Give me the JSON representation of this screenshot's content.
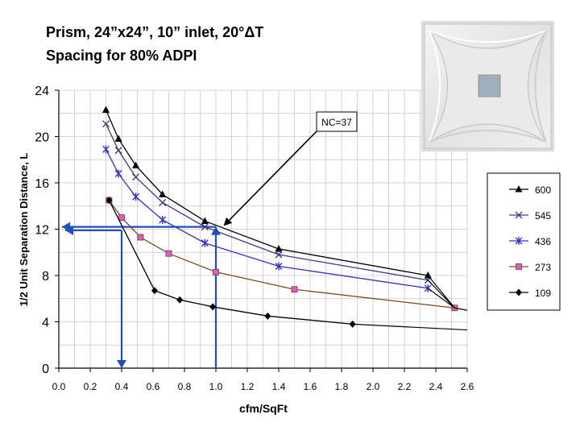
{
  "slide": {
    "title_line1": "Prism, 24”x24”, 10” inlet, 20°ΔT",
    "title_line2": "Spacing for 80% ADPI"
  },
  "colors": {
    "grid": "#c8c8c8",
    "axis": "#000000",
    "arrow_blue": "#1f4fbf",
    "series_600": "#000000",
    "series_545": "#3a3a8a",
    "series_436": "#3333cc",
    "series_273": "#7a4a20",
    "series_109": "#000000",
    "marker_273": "#e060b0"
  },
  "chart_data": {
    "type": "line",
    "title": "",
    "xlabel": "cfm/SqFt",
    "ylabel": "1/2 Unit Separation Distance, L",
    "xlim": [
      0,
      2.6
    ],
    "ylim": [
      0,
      24
    ],
    "x_ticks": [
      "0.0",
      "0.2",
      "0.4",
      "0.6",
      "0.8",
      "1.0",
      "1.2",
      "1.4",
      "1.6",
      "1.8",
      "2.0",
      "2.2",
      "2.4",
      "2.6"
    ],
    "y_ticks": [
      "0",
      "4",
      "8",
      "12",
      "16",
      "20",
      "24"
    ],
    "grid": true,
    "legend_position": "right",
    "annotation": "NC=37",
    "series": [
      {
        "name": "600",
        "marker": "triangle",
        "x": [
          0.3,
          0.38,
          0.49,
          0.66,
          0.93,
          1.4,
          2.35
        ],
        "y": [
          22.3,
          19.8,
          17.5,
          15.0,
          12.7,
          10.3,
          8.0
        ]
      },
      {
        "name": "545",
        "marker": "x",
        "x": [
          0.3,
          0.38,
          0.49,
          0.66,
          0.93,
          1.4,
          2.35
        ],
        "y": [
          21.1,
          18.8,
          16.5,
          14.3,
          12.2,
          9.8,
          7.6
        ]
      },
      {
        "name": "436",
        "marker": "star",
        "x": [
          0.3,
          0.38,
          0.49,
          0.66,
          0.93,
          1.4,
          2.35
        ],
        "y": [
          18.9,
          16.8,
          14.8,
          12.8,
          10.8,
          8.8,
          6.9
        ]
      },
      {
        "name": "273",
        "marker": "square",
        "x": [
          0.32,
          0.4,
          0.52,
          0.7,
          1.0,
          1.5,
          2.52
        ],
        "y": [
          14.5,
          13.0,
          11.3,
          9.9,
          8.3,
          6.8,
          5.2
        ]
      },
      {
        "name": "109",
        "marker": "diamond",
        "x": [
          0.32,
          0.61,
          0.77,
          0.98,
          1.33,
          1.87
        ],
        "y": [
          14.5,
          6.7,
          5.9,
          5.3,
          4.5,
          3.8
        ]
      }
    ]
  }
}
